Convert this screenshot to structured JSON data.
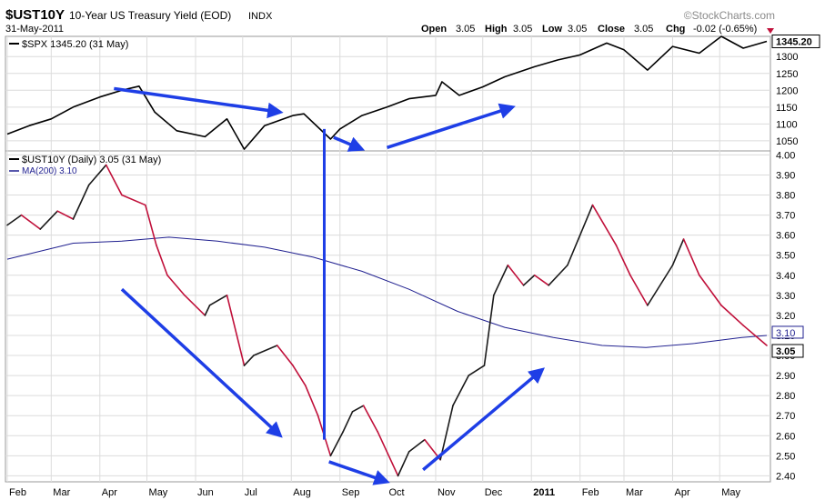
{
  "header": {
    "symbol": "$UST10Y",
    "description": "10-Year US Treasury Yield (EOD)",
    "exchange": "INDX",
    "date": "31-May-2011",
    "watermark": "©StockCharts.com",
    "open_label": "Open",
    "open": "3.05",
    "high_label": "High",
    "high": "3.05",
    "low_label": "Low",
    "low": "3.05",
    "close_label": "Close",
    "close": "3.05",
    "chg_label": "Chg",
    "chg": "-0.02 (-0.65%)"
  },
  "colors": {
    "spx_line": "#000000",
    "yield_up": "#1a1a1a",
    "yield_down": "#c0103a",
    "ma_line": "#1f1f8f",
    "arrow": "#1e3ee6",
    "grid": "#dcdcdc",
    "chg_triangle": "#c0103a"
  },
  "chart_data": [
    {
      "type": "line",
      "legend": "$SPX 1345.20 (31 May)",
      "last_value_label": "1345.20",
      "y_ticks": [
        1050,
        1100,
        1150,
        1200,
        1250,
        1300
      ],
      "ylim": [
        1020,
        1360
      ],
      "grid": true,
      "series": [
        {
          "name": "$SPX",
          "x": [
            "2010-02-01",
            "2010-02-15",
            "2010-03-01",
            "2010-03-15",
            "2010-04-01",
            "2010-04-15",
            "2010-04-26",
            "2010-05-06",
            "2010-05-20",
            "2010-06-07",
            "2010-06-21",
            "2010-07-02",
            "2010-07-15",
            "2010-08-02",
            "2010-08-09",
            "2010-08-26",
            "2010-09-01",
            "2010-09-15",
            "2010-10-01",
            "2010-10-15",
            "2010-11-01",
            "2010-11-05",
            "2010-11-16",
            "2010-12-01",
            "2010-12-15",
            "2011-01-03",
            "2011-01-18",
            "2011-02-01",
            "2011-02-18",
            "2011-03-01",
            "2011-03-16",
            "2011-04-01",
            "2011-04-18",
            "2011-05-02",
            "2011-05-16",
            "2011-05-31"
          ],
          "values": [
            1070,
            1095,
            1115,
            1150,
            1180,
            1200,
            1212,
            1135,
            1080,
            1062,
            1115,
            1025,
            1095,
            1125,
            1130,
            1055,
            1085,
            1125,
            1150,
            1175,
            1185,
            1225,
            1185,
            1210,
            1240,
            1270,
            1290,
            1305,
            1340,
            1320,
            1260,
            1330,
            1310,
            1360,
            1325,
            1345.2
          ]
        }
      ]
    },
    {
      "type": "line",
      "legend": "$UST10Y (Daily) 3.05 (31 May)",
      "ma_legend": "MA(200) 3.10",
      "last_value_label": "3.05",
      "ma_value_label": "3.10",
      "y_ticks": [
        2.4,
        2.5,
        2.6,
        2.7,
        2.8,
        2.9,
        3.0,
        3.1,
        3.2,
        3.3,
        3.4,
        3.5,
        3.6,
        3.7,
        3.8,
        3.9,
        4.0
      ],
      "ylim": [
        2.37,
        4.02
      ],
      "grid": true,
      "series": [
        {
          "name": "$UST10Y (Daily)",
          "x": [
            "2010-02-01",
            "2010-02-10",
            "2010-02-22",
            "2010-03-05",
            "2010-03-15",
            "2010-03-25",
            "2010-04-05",
            "2010-04-15",
            "2010-04-30",
            "2010-05-07",
            "2010-05-14",
            "2010-05-25",
            "2010-06-07",
            "2010-06-10",
            "2010-06-21",
            "2010-07-02",
            "2010-07-08",
            "2010-07-23",
            "2010-08-02",
            "2010-08-10",
            "2010-08-18",
            "2010-08-26",
            "2010-09-03",
            "2010-09-09",
            "2010-09-16",
            "2010-09-25",
            "2010-10-08",
            "2010-10-15",
            "2010-10-25",
            "2010-11-04",
            "2010-11-12",
            "2010-11-22",
            "2010-12-02",
            "2010-12-08",
            "2010-12-17",
            "2010-12-27",
            "2011-01-03",
            "2011-01-12",
            "2011-01-24",
            "2011-02-01",
            "2011-02-09",
            "2011-02-24",
            "2011-03-05",
            "2011-03-16",
            "2011-04-01",
            "2011-04-08",
            "2011-04-18",
            "2011-05-02",
            "2011-05-16",
            "2011-05-31"
          ],
          "values": [
            3.65,
            3.7,
            3.63,
            3.72,
            3.68,
            3.85,
            3.95,
            3.8,
            3.75,
            3.55,
            3.4,
            3.3,
            3.2,
            3.25,
            3.3,
            2.95,
            3.0,
            3.05,
            2.95,
            2.85,
            2.7,
            2.5,
            2.62,
            2.72,
            2.75,
            2.62,
            2.4,
            2.52,
            2.58,
            2.48,
            2.75,
            2.9,
            2.95,
            3.3,
            3.45,
            3.35,
            3.4,
            3.35,
            3.45,
            3.6,
            3.75,
            3.55,
            3.4,
            3.25,
            3.45,
            3.58,
            3.4,
            3.25,
            3.15,
            3.05
          ]
        },
        {
          "name": "MA(200)",
          "x": [
            "2010-02-01",
            "2010-03-15",
            "2010-04-15",
            "2010-05-15",
            "2010-06-15",
            "2010-07-15",
            "2010-08-15",
            "2010-09-15",
            "2010-10-15",
            "2010-11-15",
            "2010-12-15",
            "2011-01-15",
            "2011-02-15",
            "2011-03-15",
            "2011-04-15",
            "2011-05-15",
            "2011-05-31"
          ],
          "values": [
            3.48,
            3.56,
            3.57,
            3.59,
            3.57,
            3.54,
            3.49,
            3.42,
            3.33,
            3.22,
            3.14,
            3.09,
            3.05,
            3.04,
            3.06,
            3.09,
            3.1
          ]
        }
      ]
    }
  ],
  "x_axis": {
    "ticks": [
      {
        "label": "Feb",
        "date": "2010-02-01",
        "bold": false
      },
      {
        "label": "Mar",
        "date": "2010-03-01",
        "bold": false
      },
      {
        "label": "Apr",
        "date": "2010-04-01",
        "bold": false
      },
      {
        "label": "May",
        "date": "2010-05-01",
        "bold": false
      },
      {
        "label": "Jun",
        "date": "2010-06-01",
        "bold": false
      },
      {
        "label": "Jul",
        "date": "2010-07-01",
        "bold": false
      },
      {
        "label": "Aug",
        "date": "2010-08-01",
        "bold": false
      },
      {
        "label": "Sep",
        "date": "2010-09-01",
        "bold": false
      },
      {
        "label": "Oct",
        "date": "2010-10-01",
        "bold": false
      },
      {
        "label": "Nov",
        "date": "2010-11-01",
        "bold": false
      },
      {
        "label": "Dec",
        "date": "2010-12-01",
        "bold": false
      },
      {
        "label": "2011",
        "date": "2011-01-01",
        "bold": true
      },
      {
        "label": "Feb",
        "date": "2011-02-01",
        "bold": false
      },
      {
        "label": "Mar",
        "date": "2011-03-01",
        "bold": false
      },
      {
        "label": "Apr",
        "date": "2011-04-01",
        "bold": false
      },
      {
        "label": "May",
        "date": "2011-05-01",
        "bold": false
      }
    ]
  },
  "annotations": {
    "arrows": [
      {
        "panel": "spx",
        "from": [
          "2010-04-10",
          1205
        ],
        "to": [
          "2010-07-25",
          1135
        ]
      },
      {
        "panel": "spx",
        "from": [
          "2010-08-28",
          1060
        ],
        "to": [
          "2010-09-15",
          1025
        ]
      },
      {
        "panel": "spx",
        "from": [
          "2010-10-01",
          1030
        ],
        "to": [
          "2010-12-20",
          1150
        ]
      },
      {
        "panel": "yield",
        "from": [
          "2010-04-15",
          3.33
        ],
        "to": [
          "2010-07-25",
          2.6
        ]
      },
      {
        "panel": "yield",
        "from": [
          "2010-08-25",
          2.47
        ],
        "to": [
          "2010-10-01",
          2.37
        ]
      },
      {
        "panel": "yield",
        "from": [
          "2010-10-24",
          2.43
        ],
        "to": [
          "2011-01-08",
          2.93
        ]
      }
    ],
    "vertical_line": {
      "date": "2010-08-22",
      "from_panel": "spx",
      "from_value": 1085,
      "to_value": 2.58
    }
  }
}
